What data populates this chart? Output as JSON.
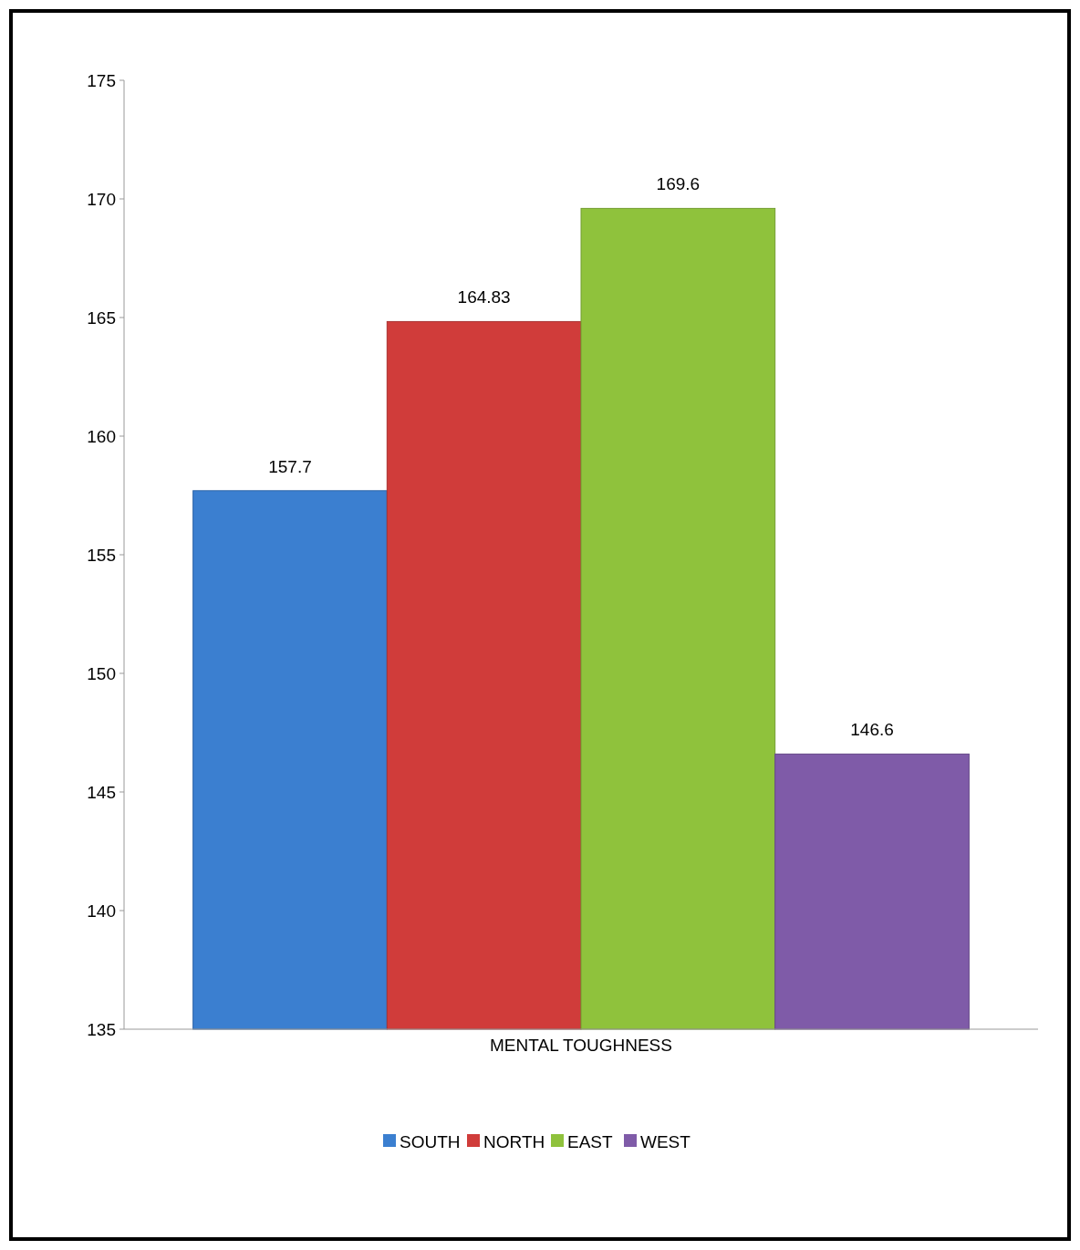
{
  "chart_data": {
    "type": "bar",
    "categories": [
      "MENTAL TOUGHNESS"
    ],
    "series": [
      {
        "name": "SOUTH",
        "color": "#3b7fd0",
        "values": [
          157.7
        ]
      },
      {
        "name": "NORTH",
        "color": "#d03c3a",
        "values": [
          164.83
        ]
      },
      {
        "name": "EAST",
        "color": "#8fc23c",
        "values": [
          169.6
        ]
      },
      {
        "name": "WEST",
        "color": "#7f5ba8",
        "values": [
          146.6
        ]
      }
    ],
    "ylim": [
      135,
      175
    ],
    "yticks": [
      135,
      140,
      145,
      150,
      155,
      160,
      165,
      170,
      175
    ],
    "data_labels": true,
    "legend": "bottom",
    "grid": false
  }
}
